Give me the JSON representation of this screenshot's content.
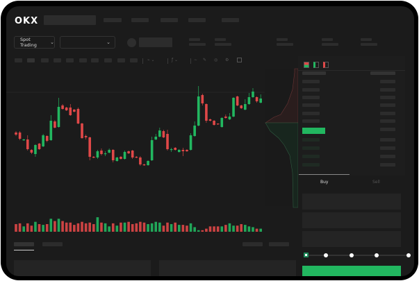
{
  "header": {
    "logo": "OKX"
  },
  "market_selector": {
    "label": "Spot Trading",
    "chevron": "chevron-down-icon"
  },
  "order_form": {
    "tabs": [
      "Buy",
      "Sell"
    ],
    "active_tab": "Buy",
    "slider_percent": 0
  },
  "colors": {
    "up": "#22b760",
    "down": "#e04848",
    "background": "#1b1b1b",
    "accent_button": "#22b760"
  },
  "chart": {
    "type": "candlestick",
    "candles": [
      [
        68,
        70,
        63,
        65
      ],
      [
        68,
        70,
        57,
        59
      ],
      [
        57,
        59,
        56,
        58
      ],
      [
        58,
        64,
        42,
        44
      ],
      [
        43,
        44,
        37,
        39
      ],
      [
        37,
        51,
        33,
        50
      ],
      [
        52,
        53,
        43,
        44
      ],
      [
        48,
        66,
        47,
        64
      ],
      [
        63,
        64,
        54,
        56
      ],
      [
        57,
        93,
        56,
        85
      ],
      [
        84,
        86,
        74,
        75
      ],
      [
        76,
        118,
        75,
        105
      ],
      [
        107,
        109,
        101,
        102
      ],
      [
        104,
        105,
        99,
        100
      ],
      [
        104,
        109,
        92,
        93
      ],
      [
        101,
        102,
        97,
        98
      ],
      [
        102,
        104,
        80,
        81
      ],
      [
        81,
        82,
        59,
        60
      ],
      [
        63,
        65,
        58,
        61
      ],
      [
        61,
        62,
        28,
        33
      ],
      [
        33,
        34,
        31,
        32
      ],
      [
        32,
        43,
        30,
        41
      ],
      [
        42,
        45,
        35,
        37
      ],
      [
        37,
        41,
        34,
        38
      ],
      [
        39,
        45,
        38,
        43
      ],
      [
        43,
        44,
        25,
        28
      ],
      [
        27,
        33,
        26,
        32
      ],
      [
        33,
        34,
        29,
        30
      ],
      [
        30,
        42,
        29,
        40
      ],
      [
        41,
        42,
        37,
        38
      ],
      [
        42,
        43,
        30,
        32
      ],
      [
        33,
        34,
        31,
        32
      ],
      [
        32,
        34,
        20,
        22
      ],
      [
        22,
        23,
        20,
        21
      ],
      [
        21,
        28,
        20,
        27
      ],
      [
        28,
        62,
        27,
        57
      ],
      [
        58,
        66,
        57,
        62
      ],
      [
        62,
        75,
        61,
        71
      ],
      [
        70,
        72,
        60,
        61
      ],
      [
        66,
        72,
        42,
        44
      ],
      [
        43,
        46,
        40,
        44
      ],
      [
        46,
        47,
        42,
        43
      ],
      [
        40,
        44,
        39,
        43
      ],
      [
        43,
        46,
        34,
        41
      ],
      [
        43,
        44,
        40,
        41
      ],
      [
        43,
        67,
        42,
        64
      ],
      [
        63,
        84,
        62,
        78
      ],
      [
        78,
        135,
        77,
        120
      ],
      [
        122,
        124,
        107,
        110
      ],
      [
        109,
        110,
        82,
        85
      ],
      [
        87,
        88,
        84,
        85
      ],
      [
        85,
        86,
        78,
        79
      ],
      [
        81,
        81,
        79,
        80
      ],
      [
        76,
        90,
        75,
        89
      ],
      [
        91,
        94,
        88,
        89
      ],
      [
        87,
        96,
        86,
        91
      ],
      [
        91,
        119,
        90,
        118
      ],
      [
        120,
        121,
        106,
        107
      ],
      [
        107,
        108,
        102,
        103
      ],
      [
        101,
        116,
        100,
        109
      ],
      [
        109,
        125,
        108,
        119
      ],
      [
        119,
        132,
        118,
        127
      ],
      [
        119,
        120,
        111,
        113
      ],
      [
        111,
        123,
        110,
        117
      ]
    ],
    "volumes": [
      10,
      11,
      7,
      11,
      8,
      13,
      10,
      9,
      10,
      17,
      14,
      17,
      14,
      12,
      12,
      9,
      11,
      13,
      11,
      12,
      10,
      19,
      12,
      11,
      7,
      11,
      8,
      12,
      12,
      13,
      10,
      11,
      13,
      12,
      10,
      11,
      13,
      12,
      8,
      12,
      10,
      12,
      9,
      9,
      8,
      11,
      6,
      2,
      2,
      4,
      7,
      7,
      7,
      7,
      9,
      11,
      8,
      8,
      10,
      9,
      7,
      6,
      4,
      4
    ]
  }
}
